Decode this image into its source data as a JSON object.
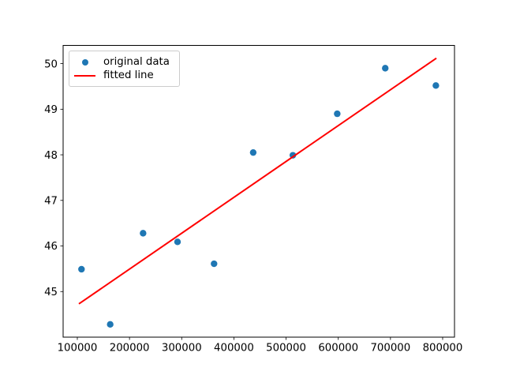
{
  "chart_data": {
    "type": "scatter",
    "title": "",
    "xlabel": "",
    "ylabel": "",
    "grid": false,
    "background": "#ffffff",
    "frame_color": "#000000",
    "tick_color": "#000000",
    "xlim": [
      72800,
      822700
    ],
    "ylim": [
      44.0,
      50.4
    ],
    "x_ticks": [
      {
        "value": 100000,
        "label": "100000"
      },
      {
        "value": 200000,
        "label": "200000"
      },
      {
        "value": 300000,
        "label": "300000"
      },
      {
        "value": 400000,
        "label": "400000"
      },
      {
        "value": 500000,
        "label": "500000"
      },
      {
        "value": 600000,
        "label": "600000"
      },
      {
        "value": 700000,
        "label": "700000"
      },
      {
        "value": 800000,
        "label": "800000"
      }
    ],
    "y_ticks": [
      {
        "value": 45,
        "label": "45"
      },
      {
        "value": 46,
        "label": "46"
      },
      {
        "value": 47,
        "label": "47"
      },
      {
        "value": 48,
        "label": "48"
      },
      {
        "value": 49,
        "label": "49"
      },
      {
        "value": 50,
        "label": "50"
      }
    ],
    "series": [
      {
        "name": "original data",
        "type": "scatter",
        "color": "#1f77b4",
        "marker_radius": 4.2,
        "points": [
          [
            108000,
            45.49
          ],
          [
            163000,
            44.28
          ],
          [
            226000,
            46.28
          ],
          [
            292000,
            46.09
          ],
          [
            362000,
            45.61
          ],
          [
            437000,
            48.05
          ],
          [
            513000,
            47.99
          ],
          [
            598000,
            48.9
          ],
          [
            690000,
            49.9
          ],
          [
            787000,
            49.52
          ]
        ]
      },
      {
        "name": "fitted line",
        "type": "line",
        "color": "#ff0000",
        "line_width": 2,
        "points": [
          [
            103000,
            44.73
          ],
          [
            788000,
            50.12
          ]
        ]
      }
    ],
    "legend": {
      "position": "upper-left",
      "entries": [
        {
          "label": "original data",
          "marker": "dot",
          "color": "#1f77b4"
        },
        {
          "label": "fitted line",
          "marker": "line",
          "color": "#ff0000"
        }
      ]
    }
  }
}
